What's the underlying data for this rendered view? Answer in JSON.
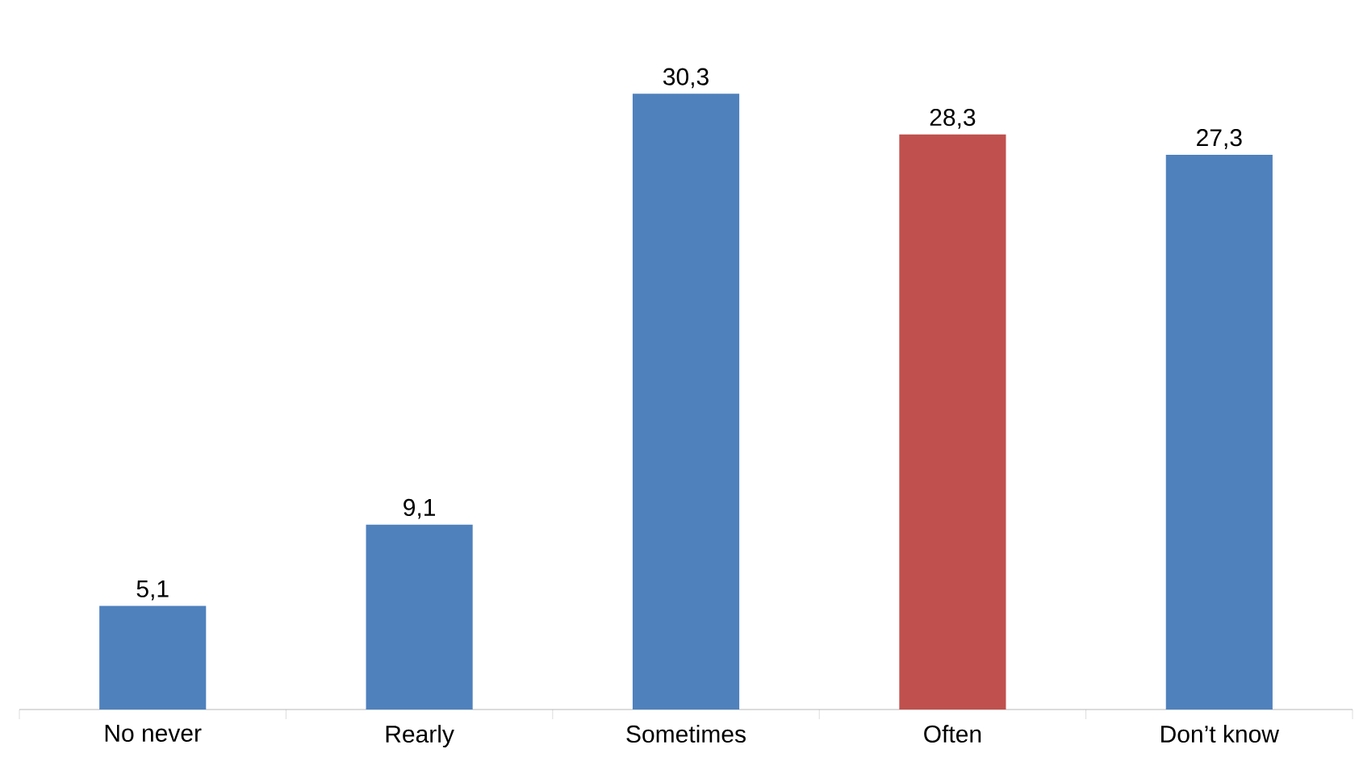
{
  "chart_data": {
    "type": "bar",
    "categories": [
      "No never",
      "Rearly",
      "Sometimes",
      "Often",
      "Don’t know"
    ],
    "values": [
      5.1,
      9.1,
      30.3,
      28.3,
      27.3
    ],
    "colors": [
      "#4f81bd",
      "#4f81bd",
      "#4f81bd",
      "#c0504d",
      "#4f81bd"
    ],
    "value_labels": [
      "5,1",
      "9,1",
      "30,3",
      "28,3",
      "27,3"
    ]
  }
}
